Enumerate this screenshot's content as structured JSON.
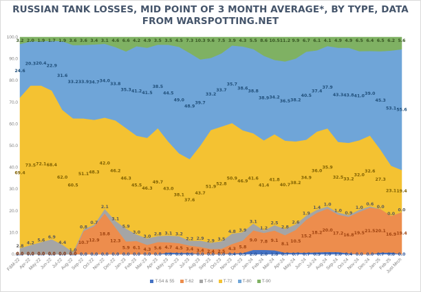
{
  "chart_data": {
    "type": "area",
    "stacked": "100%",
    "title": "RUSSIAN TANK LOSSES, MID POINT OF 3 MONTH AVERAGE*, BY TYPE, DATA FROM WARSPOTTING.NET",
    "title_lines": [
      "RUSSIAN TANK LOSSES, MID POINT OF 3 MONTH AVERAGE*, BY TYPE, DATA",
      "FROM WARSPOTTING.NET"
    ],
    "xlabel": "",
    "ylabel": "",
    "ylim": [
      0,
      100
    ],
    "yticks": [
      "0.0",
      "10.0",
      "20.0",
      "30.0",
      "40.0",
      "50.0",
      "60.0",
      "70.0",
      "80.0",
      "90.0",
      "100.0"
    ],
    "grid": false,
    "legend_position": "bottom",
    "categories": [
      "F&M-22",
      "Apr-22",
      "May-22",
      "Jun-22",
      "Jul-22",
      "Aug-22",
      "Sep-22",
      "Oct-22",
      "Nov-22",
      "Dec-22",
      "Jan-23",
      "Feb-23",
      "Mar-23",
      "Apr-23",
      "May-23",
      "Jun-23",
      "Jul-23",
      "Aug-23",
      "Sep-23",
      "Oct-23",
      "Nov-23",
      "Dec-23",
      "Jan-24",
      "Feb-24",
      "Mar-24",
      "Apr-24",
      "May-24",
      "Jun-24",
      "Jul-24",
      "Aug-24",
      "Sep-24",
      "Oct-24",
      "Nov-24",
      "Dec-24",
      "Jan-25",
      "Feb-25",
      "Just Mrch"
    ],
    "series": [
      {
        "name": "T-54 & 55",
        "color": "#4472c4",
        "label_color": "#2f5597",
        "values": [
          0.0,
          0.0,
          0.0,
          0.0,
          0.0,
          0.0,
          0.0,
          0.0,
          0.0,
          0.0,
          0.0,
          0.0,
          0.0,
          0.0,
          0.8,
          0.6,
          0.6,
          0.0,
          0.0,
          0.0,
          0.4,
          0.5,
          2.0,
          2.0,
          1.8,
          0.7,
          0.7,
          0.7,
          0.9,
          1.0,
          1.0,
          0.4,
          0.0,
          0.0,
          0.7,
          0.8,
          0.0
        ]
      },
      {
        "name": "T-62",
        "color": "#ed8d4d",
        "label_color": "#a0430f",
        "values": [
          0.0,
          0.0,
          0.0,
          0.0,
          0.0,
          0.0,
          10.7,
          12.9,
          18.8,
          12.3,
          5.9,
          6.1,
          4.3,
          5.6,
          4.7,
          4.5,
          3.4,
          3.4,
          2.4,
          2.5,
          4.3,
          5.8,
          9.0,
          7.8,
          9.1,
          8.1,
          10.5,
          15.2,
          18.2,
          20.0,
          17.2,
          16.8,
          19.5,
          21.5,
          20.1,
          16.9,
          19.4
        ]
      },
      {
        "name": "T-64",
        "color": "#a5a5a5",
        "label_color": "#595959",
        "values": [
          2.8,
          4.2,
          5.6,
          6.9,
          4.4,
          1.0,
          0.8,
          0.7,
          2.1,
          3.1,
          5.9,
          3.0,
          3.0,
          2.8,
          3.1,
          3.2,
          2.2,
          2.9,
          2.9,
          3.5,
          4.8,
          3.9,
          3.1,
          1.2,
          2.5,
          2.8,
          2.6,
          1.9,
          1.4,
          1.0,
          1.0,
          0.9,
          1.0,
          0.6,
          0.0,
          0.0,
          0.0
        ]
      },
      {
        "name": "T-72",
        "color": "#f4c232",
        "label_color": "#7f6000",
        "values": [
          69.4,
          73.5,
          72.1,
          68.4,
          62.0,
          60.5,
          51.1,
          48.3,
          42.0,
          46.2,
          46.3,
          45.5,
          46.3,
          49.7,
          43.0,
          38.1,
          37.6,
          43.7,
          51.9,
          52.8,
          50.9,
          46.9,
          41.6,
          41.4,
          41.8,
          40.7,
          38.2,
          34.9,
          36.0,
          35.9,
          32.5,
          33.2,
          32.0,
          32.6,
          27.3,
          23.1,
          19.4
        ]
      },
      {
        "name": "T-80",
        "color": "#6fa5d8",
        "label_color": "#1f4e79",
        "values": [
          24.6,
          20.3,
          20.4,
          22.9,
          31.6,
          33.2,
          33.9,
          34.7,
          34.0,
          33.8,
          35.3,
          41.2,
          41.5,
          38.5,
          44.5,
          49.0,
          48.9,
          39.7,
          33.2,
          33.7,
          35.7,
          38.6,
          38.8,
          38.9,
          34.2,
          36.5,
          38.2,
          40.5,
          37.4,
          37.9,
          43.3,
          43.8,
          41.0,
          39.0,
          45.3,
          53.1,
          55.6
        ]
      },
      {
        "name": "T-90",
        "color": "#7fb163",
        "label_color": "#375623",
        "values": [
          3.2,
          2.0,
          1.9,
          1.7,
          1.9,
          3.6,
          3.6,
          3.4,
          3.1,
          4.6,
          6.6,
          4.2,
          4.9,
          3.5,
          3.5,
          4.5,
          7.3,
          10.3,
          9.6,
          7.5,
          3.9,
          4.3,
          5.5,
          8.6,
          10.5,
          11.2,
          9.9,
          6.7,
          6.1,
          4.1,
          4.9,
          4.9,
          6.5,
          6.4,
          6.5,
          6.2,
          5.6
        ]
      }
    ]
  }
}
